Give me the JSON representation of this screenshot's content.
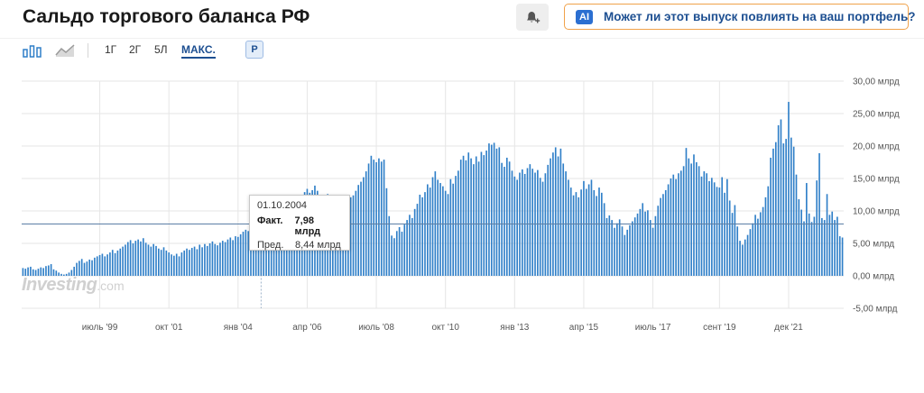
{
  "header": {
    "title": "Сальдо торгового баланса РФ",
    "ai_badge": "AI",
    "ai_prompt": "Может ли этот выпуск повлиять на ваш портфель?"
  },
  "toolbar": {
    "ranges": [
      "1Г",
      "2Г",
      "5Л",
      "МАКС."
    ],
    "active_range": "МАКС.",
    "currency_button": "Р"
  },
  "tooltip": {
    "date": "01.10.2004",
    "actual_label": "Факт.",
    "actual_value": "7,98 млрд",
    "forecast_label": "Пред.",
    "forecast_value": "8,44 млрд"
  },
  "watermark": {
    "main": "Investing",
    "sub": ".com"
  },
  "colors": {
    "bar": "#2f7fc8",
    "accent": "#1d4f91",
    "ai_border": "#f0a24a",
    "crosshair": "#5c7fa6",
    "grid": "#e6e6e6"
  },
  "chart_data": {
    "type": "bar",
    "unit": "млрд",
    "x_start": "1997-01",
    "x_end": "2023-09",
    "ylim": [
      -5,
      30
    ],
    "y_ticks": [
      "30,00 млрд",
      "25,00 млрд",
      "20,00 млрд",
      "15,00 млрд",
      "10,00 млрд",
      "5,00 млрд",
      "0,00 млрд",
      "-5,00 млрд"
    ],
    "x_ticks": [
      "июль '99",
      "окт '01",
      "янв '04",
      "апр '06",
      "июль '08",
      "окт '10",
      "янв '13",
      "апр '15",
      "июль '17",
      "сент '19",
      "дек '21"
    ],
    "grid": true,
    "highlight": {
      "date": "2004-10",
      "actual": 7.98,
      "forecast": 8.44
    },
    "series_annual": [
      {
        "year": 1997,
        "values": [
          1.2,
          1.1,
          1.3,
          1.4,
          1.0,
          0.9,
          1.1,
          1.3,
          1.2,
          1.5,
          1.6,
          1.8
        ]
      },
      {
        "year": 1998,
        "values": [
          1.0,
          0.8,
          0.5,
          0.3,
          0.2,
          0.3,
          0.5,
          0.9,
          1.4,
          2.0,
          2.3,
          2.6
        ]
      },
      {
        "year": 1999,
        "values": [
          2.0,
          2.2,
          2.5,
          2.4,
          2.8,
          3.0,
          3.2,
          3.4,
          3.0,
          3.3,
          3.6,
          4.0
        ]
      },
      {
        "year": 2000,
        "values": [
          3.5,
          3.9,
          4.2,
          4.5,
          4.8,
          5.2,
          5.5,
          5.0,
          5.4,
          5.6,
          5.3,
          5.8
        ]
      },
      {
        "year": 2001,
        "values": [
          5.1,
          4.8,
          4.5,
          4.9,
          4.6,
          4.2,
          4.0,
          4.4,
          3.9,
          3.6,
          3.3,
          3.1
        ]
      },
      {
        "year": 2002,
        "values": [
          3.4,
          3.0,
          3.6,
          3.9,
          4.2,
          4.0,
          4.3,
          4.5,
          4.1,
          4.8,
          4.4,
          4.9
        ]
      },
      {
        "year": 2003,
        "values": [
          4.6,
          5.0,
          5.3,
          4.9,
          4.7,
          5.1,
          5.4,
          5.2,
          5.6,
          5.9,
          5.5,
          6.1
        ]
      },
      {
        "year": 2004,
        "values": [
          6.0,
          6.4,
          6.8,
          7.1,
          6.9,
          7.3,
          7.5,
          7.4,
          7.7,
          7.98,
          8.2,
          8.5
        ]
      },
      {
        "year": 2005,
        "values": [
          8.3,
          8.8,
          9.2,
          9.6,
          10.0,
          10.4,
          11.0,
          11.5,
          11.2,
          12.0,
          11.4,
          12.2
        ]
      },
      {
        "year": 2006,
        "values": [
          11.8,
          12.3,
          12.9,
          13.4,
          12.8,
          13.2,
          13.9,
          13.1,
          12.5,
          11.8,
          11.5,
          12.6
        ]
      },
      {
        "year": 2007,
        "values": [
          10.2,
          9.8,
          10.6,
          11.4,
          10.9,
          11.6,
          11.9,
          11.2,
          12.1,
          12.4,
          13.1,
          14.0
        ]
      },
      {
        "year": 2008,
        "values": [
          14.5,
          15.2,
          16.1,
          17.3,
          18.5,
          17.9,
          17.5,
          18.1,
          17.6,
          17.9,
          13.5,
          9.2
        ]
      },
      {
        "year": 2009,
        "values": [
          6.2,
          5.8,
          6.9,
          7.5,
          6.8,
          7.9,
          8.6,
          9.4,
          8.9,
          10.3,
          11.1,
          12.5
        ]
      },
      {
        "year": 2010,
        "values": [
          12.1,
          12.9,
          14.1,
          13.6,
          15.2,
          16.1,
          14.8,
          14.3,
          13.8,
          13.1,
          12.6,
          14.9
        ]
      },
      {
        "year": 2011,
        "values": [
          14.2,
          15.4,
          16.2,
          17.9,
          18.5,
          17.8,
          19.0,
          18.1,
          17.2,
          18.4,
          17.6,
          19.1
        ]
      },
      {
        "year": 2012,
        "values": [
          18.6,
          19.3,
          20.4,
          20.2,
          20.5,
          19.6,
          19.8,
          17.4,
          16.8,
          18.2,
          17.6,
          16.2
        ]
      },
      {
        "year": 2013,
        "values": [
          15.3,
          14.8,
          15.9,
          16.4,
          15.7,
          16.6,
          17.2,
          16.5,
          15.9,
          16.3,
          15.1,
          14.5
        ]
      },
      {
        "year": 2014,
        "values": [
          15.8,
          17.1,
          18.1,
          19.0,
          19.8,
          18.4,
          19.6,
          17.3,
          16.1,
          14.8,
          13.6,
          12.4
        ]
      },
      {
        "year": 2015,
        "values": [
          12.9,
          12.1,
          13.3,
          14.6,
          13.4,
          14.1,
          14.8,
          13.2,
          12.3,
          13.6,
          12.8,
          11.2
        ]
      },
      {
        "year": 2016,
        "values": [
          8.9,
          9.3,
          8.6,
          7.4,
          8.1,
          8.7,
          7.6,
          6.3,
          7.1,
          7.8,
          8.4,
          9.0
        ]
      },
      {
        "year": 2017,
        "values": [
          9.6,
          10.3,
          11.2,
          9.9,
          10.1,
          8.6,
          7.4,
          9.2,
          10.8,
          12.0,
          12.6,
          13.2
        ]
      },
      {
        "year": 2018,
        "values": [
          14.1,
          15.0,
          15.6,
          14.9,
          15.8,
          16.2,
          16.9,
          19.7,
          18.1,
          17.3,
          18.7,
          17.5
        ]
      },
      {
        "year": 2019,
        "values": [
          16.9,
          15.3,
          16.1,
          15.8,
          14.6,
          15.1,
          14.4,
          13.7,
          13.6,
          15.2,
          12.8,
          14.9
        ]
      },
      {
        "year": 2020,
        "values": [
          11.6,
          9.7,
          10.9,
          7.6,
          5.4,
          4.8,
          5.6,
          6.3,
          7.2,
          8.1,
          9.4,
          8.8
        ]
      },
      {
        "year": 2021,
        "values": [
          9.8,
          10.6,
          12.1,
          13.8,
          18.2,
          19.6,
          20.6,
          23.2,
          24.1,
          20.4,
          21.1,
          26.8
        ]
      },
      {
        "year": 2022,
        "values": [
          21.3,
          19.9,
          15.6,
          11.8,
          10.2,
          8.4,
          14.3,
          9.6,
          8.3,
          9.1,
          14.7,
          18.9
        ]
      },
      {
        "year": 2023,
        "values": [
          8.9,
          8.6,
          12.6,
          9.4,
          9.9,
          8.6,
          9.1,
          6.1,
          5.9
        ]
      }
    ]
  }
}
